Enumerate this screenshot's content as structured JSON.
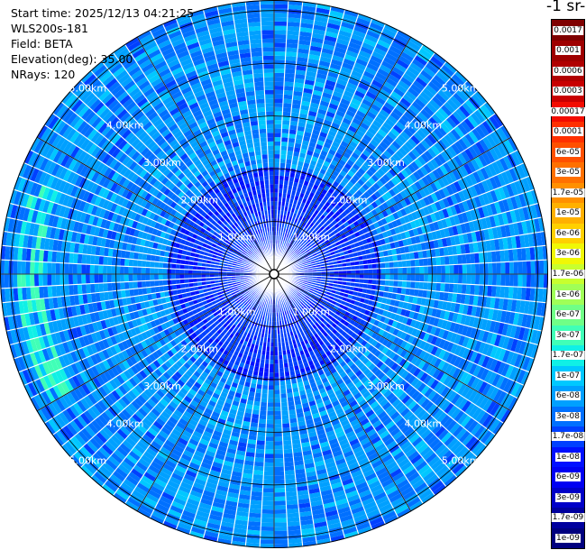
{
  "info": {
    "start_time": "Start time: 2025/12/13 04:21:25",
    "instrument": "WLS200s-181",
    "field": "Field: BETA",
    "elevation": "Elevation(deg): 35.00",
    "nrays": "NRays: 120"
  },
  "colorbar_title": "-1 sr-",
  "chart_data": {
    "type": "heatmap",
    "projection": "polar",
    "field": "BETA",
    "elevation_deg": 35.0,
    "n_rays": 120,
    "range_rings": [
      {
        "km": 1,
        "label": "1.00km"
      },
      {
        "km": 2,
        "label": "2.00km"
      },
      {
        "km": 3,
        "label": "3.00km"
      },
      {
        "km": 4,
        "label": "4.00km"
      },
      {
        "km": 5,
        "label": "5.00km"
      }
    ],
    "max_range_km": 5.2,
    "colorbar": {
      "levels": [
        "1e-09",
        "1.7e-09",
        "3e-09",
        "6e-09",
        "1e-08",
        "1.7e-08",
        "3e-08",
        "6e-08",
        "1e-07",
        "1.7e-07",
        "3e-07",
        "6e-07",
        "1e-06",
        "1.7e-06",
        "3e-06",
        "6e-06",
        "1e-05",
        "1.7e-05",
        "3e-05",
        "6e-05",
        "0.0001",
        "0.00017",
        "0.0003",
        "0.0006",
        "0.001",
        "0.0017"
      ],
      "colors": [
        "#00007f",
        "#00009e",
        "#0000c8",
        "#0000f2",
        "#0010ff",
        "#0040ff",
        "#0070ff",
        "#00a0ff",
        "#00c8ff",
        "#10f0e6",
        "#40ffb7",
        "#70ff87",
        "#a0ff57",
        "#c8ff2e",
        "#f0f706",
        "#ffd000",
        "#ffb000",
        "#ff9000",
        "#ff7000",
        "#ff5000",
        "#ff3000",
        "#f20c00",
        "#c80000",
        "#b00000",
        "#9e0000",
        "#7f0000"
      ]
    },
    "features": [
      {
        "description": "weak returns near center",
        "value": "1.7e-08"
      },
      {
        "description": "background aerosol",
        "value": "6e-08"
      },
      {
        "description": "arc west",
        "range_km": [
          4.4,
          4.9
        ],
        "value": "3e-07"
      }
    ]
  }
}
